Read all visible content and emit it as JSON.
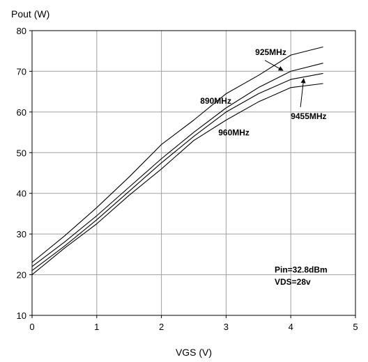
{
  "chart_data": {
    "type": "line",
    "xlabel": "VGS (V)",
    "ylabel": "Pout (W)",
    "xlim": [
      0,
      5
    ],
    "ylim": [
      10,
      80
    ],
    "xticks": [
      0,
      1,
      2,
      3,
      4,
      5
    ],
    "yticks": [
      10,
      20,
      30,
      40,
      50,
      60,
      70,
      80
    ],
    "grid": true,
    "x": [
      0,
      0.5,
      1,
      1.5,
      2,
      2.5,
      3,
      3.5,
      4,
      4.5
    ],
    "series": [
      {
        "name": "890MHz",
        "values": [
          23,
          29.5,
          36.5,
          44,
          52,
          58,
          64.5,
          69,
          74,
          76
        ]
      },
      {
        "name": "925MHz",
        "values": [
          22,
          28,
          34.5,
          41.5,
          48.5,
          55,
          61,
          66,
          70,
          72
        ]
      },
      {
        "name": "9455MHz",
        "values": [
          21,
          27,
          33.5,
          40.5,
          47.5,
          54,
          60,
          64.5,
          68,
          69.5
        ]
      },
      {
        "name": "960MHz",
        "values": [
          20,
          26.5,
          32.5,
          39.5,
          46,
          53,
          58,
          62.5,
          66,
          67
        ]
      }
    ],
    "annotations": [
      {
        "text": "890MHz",
        "x": 2.6,
        "y": 62
      },
      {
        "text": "925MHz",
        "x": 3.45,
        "y": 74
      },
      {
        "text": "9455MHz",
        "x": 4.0,
        "y": 58.3
      },
      {
        "text": "960MHz",
        "x": 2.88,
        "y": 54.2
      },
      {
        "text": "Pin=32.8dBm",
        "x": 3.75,
        "y": 20.5
      },
      {
        "text": "VDS=28v",
        "x": 3.75,
        "y": 17.5
      }
    ],
    "pointers": [
      {
        "label": "925MHz",
        "from": [
          3.6,
          72.7
        ],
        "to": [
          3.88,
          70.2
        ]
      },
      {
        "label": "9455MHz",
        "from": [
          4.15,
          61.2
        ],
        "to": [
          4.2,
          68.2
        ]
      }
    ]
  }
}
